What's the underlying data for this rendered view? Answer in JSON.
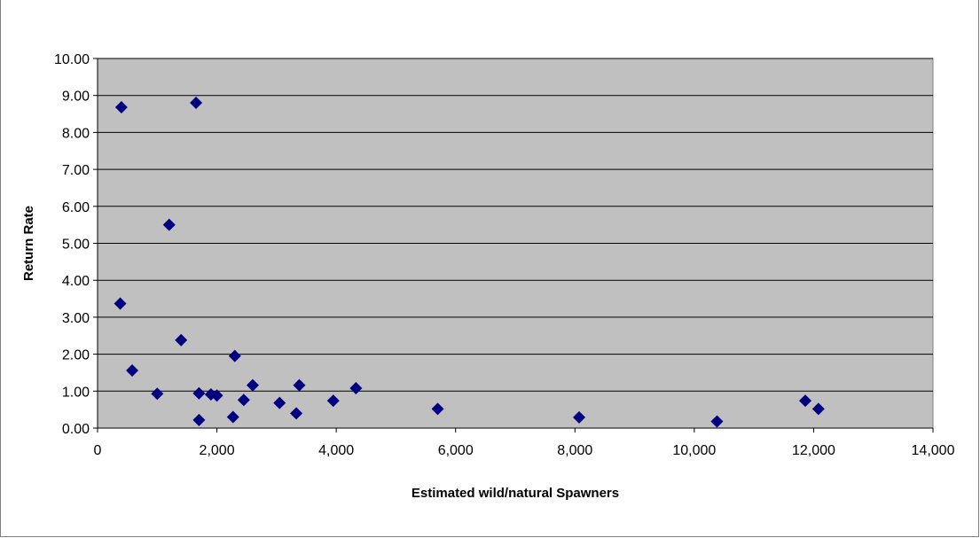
{
  "chart_data": {
    "type": "scatter",
    "title": "",
    "xlabel": "Estimated wild/natural Spawners",
    "ylabel": "Return Rate",
    "xlim": [
      0,
      14000
    ],
    "ylim": [
      0,
      10
    ],
    "grid": "horizontal",
    "x_tick_labels": [
      "0",
      "2,000",
      "4,000",
      "6,000",
      "8,000",
      "10,000",
      "12,000",
      "14,000"
    ],
    "y_tick_labels": [
      "0.00",
      "1.00",
      "2.00",
      "3.00",
      "4.00",
      "5.00",
      "6.00",
      "7.00",
      "8.00",
      "9.00",
      "10.00"
    ],
    "colors": {
      "plot_background": "#c0c0c0",
      "marker": "#000080",
      "gridline": "#000000"
    },
    "points": [
      {
        "x": 400,
        "y": 8.68
      },
      {
        "x": 1650,
        "y": 8.8
      },
      {
        "x": 1200,
        "y": 5.5
      },
      {
        "x": 380,
        "y": 3.37
      },
      {
        "x": 1400,
        "y": 2.38
      },
      {
        "x": 2300,
        "y": 1.95
      },
      {
        "x": 580,
        "y": 1.56
      },
      {
        "x": 1000,
        "y": 0.93
      },
      {
        "x": 1700,
        "y": 0.94
      },
      {
        "x": 1900,
        "y": 0.91
      },
      {
        "x": 2000,
        "y": 0.88
      },
      {
        "x": 2600,
        "y": 1.16
      },
      {
        "x": 2450,
        "y": 0.76
      },
      {
        "x": 3050,
        "y": 0.68
      },
      {
        "x": 3380,
        "y": 1.16
      },
      {
        "x": 3950,
        "y": 0.74
      },
      {
        "x": 4330,
        "y": 1.08
      },
      {
        "x": 1700,
        "y": 0.22
      },
      {
        "x": 2270,
        "y": 0.3
      },
      {
        "x": 3330,
        "y": 0.4
      },
      {
        "x": 5700,
        "y": 0.52
      },
      {
        "x": 8070,
        "y": 0.29
      },
      {
        "x": 10380,
        "y": 0.18
      },
      {
        "x": 11860,
        "y": 0.74
      },
      {
        "x": 12080,
        "y": 0.52
      }
    ]
  }
}
